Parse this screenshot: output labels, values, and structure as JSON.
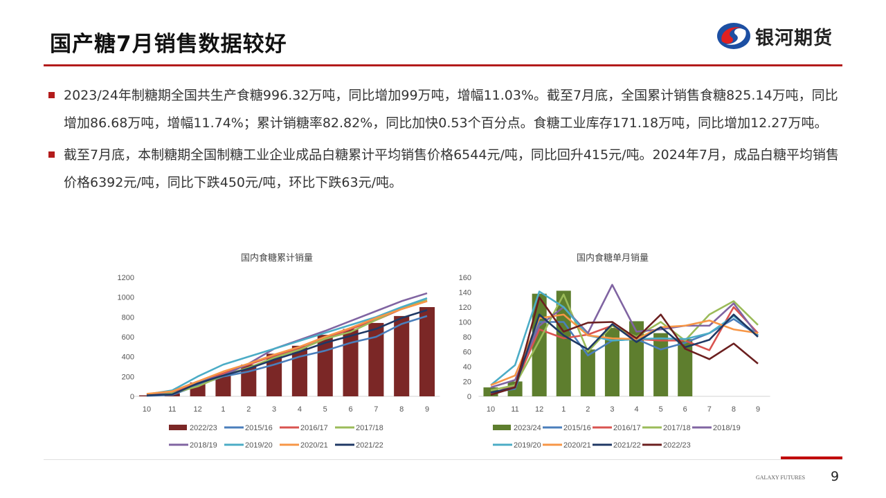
{
  "header": {
    "title": "国产糖7月销售数据较好",
    "logo_text": "银河期货"
  },
  "bullets": [
    "2023/24年制糖期全国共生产食糖996.32万吨，同比增加99万吨，增幅11.03%。截至7月底，全国累计销售食糖825.14万吨，同比增加86.68万吨，增幅11.74%；累计销糖率82.82%，同比加快0.53个百分点。食糖工业库存171.18万吨，同比增加12.27万吨。",
    "截至7月底，本制糖期全国制糖工业企业成品白糖累计平均销售价格6544元/吨，同比回升415元/吨。2024年7月，成品白糖平均销售价格6392元/吨，同比下跌450元/吨，环比下跌63元/吨。"
  ],
  "footer": {
    "brand": "GALAXY FUTURES",
    "page": "9"
  },
  "chart_data": [
    {
      "type": "bar+line",
      "title": "国内食糖累计销量",
      "categories": [
        "10",
        "11",
        "12",
        "1",
        "2",
        "3",
        "4",
        "5",
        "6",
        "7",
        "8",
        "9"
      ],
      "ylim": [
        0,
        1200
      ],
      "yticks": [
        0,
        200,
        400,
        600,
        800,
        1000,
        1200
      ],
      "bar": {
        "name": "2022/23",
        "color": "#7b2726",
        "values": [
          10,
          30,
          140,
          210,
          320,
          430,
          510,
          620,
          680,
          740,
          810,
          900
        ]
      },
      "series": [
        {
          "name": "2015/16",
          "color": "#4a7ebb",
          "values": [
            5,
            15,
            110,
            200,
            250,
            320,
            400,
            460,
            540,
            600,
            730,
            810
          ]
        },
        {
          "name": "2016/17",
          "color": "#d9534f",
          "values": [
            10,
            40,
            140,
            230,
            320,
            410,
            480,
            580,
            680,
            770,
            880,
            960
          ]
        },
        {
          "name": "2017/18",
          "color": "#9bbb59",
          "values": [
            10,
            30,
            100,
            210,
            290,
            390,
            470,
            580,
            650,
            770,
            890,
            970
          ]
        },
        {
          "name": "2018/19",
          "color": "#8064a2",
          "values": [
            15,
            50,
            150,
            210,
            330,
            480,
            570,
            660,
            760,
            860,
            960,
            1040
          ]
        },
        {
          "name": "2019/20",
          "color": "#4bacc6",
          "values": [
            20,
            60,
            200,
            320,
            400,
            480,
            560,
            640,
            720,
            800,
            900,
            990
          ]
        },
        {
          "name": "2020/21",
          "color": "#f79646",
          "values": [
            25,
            50,
            150,
            250,
            330,
            420,
            500,
            600,
            690,
            790,
            880,
            960
          ]
        },
        {
          "name": "2021/22",
          "color": "#1f3864",
          "values": [
            10,
            20,
            130,
            210,
            280,
            370,
            450,
            540,
            610,
            680,
            790,
            870
          ]
        }
      ]
    },
    {
      "type": "bar+line",
      "title": "国内食糖单月销量",
      "categories": [
        "10",
        "11",
        "12",
        "1",
        "2",
        "3",
        "4",
        "5",
        "6",
        "7",
        "8",
        "9"
      ],
      "ylim": [
        0,
        160
      ],
      "yticks": [
        0,
        20,
        40,
        60,
        80,
        100,
        120,
        140,
        160
      ],
      "bar": {
        "name": "2023/24",
        "color": "#5e7e2e",
        "values": [
          12,
          20,
          138,
          142,
          63,
          92,
          101,
          85,
          77,
          null,
          null,
          null
        ]
      },
      "series": [
        {
          "name": "2015/16",
          "color": "#4a7ebb",
          "values": [
            5,
            10,
            100,
            100,
            55,
            75,
            77,
            63,
            72,
            85,
            104,
            82
          ]
        },
        {
          "name": "2016/17",
          "color": "#d9534f",
          "values": [
            3,
            15,
            90,
            78,
            83,
            95,
            77,
            75,
            75,
            62,
            120,
            85
          ]
        },
        {
          "name": "2017/18",
          "color": "#9bbb59",
          "values": [
            8,
            15,
            75,
            137,
            60,
            95,
            80,
            100,
            75,
            110,
            128,
            96
          ]
        },
        {
          "name": "2018/19",
          "color": "#8064a2",
          "values": [
            12,
            22,
            95,
            120,
            85,
            150,
            87,
            90,
            95,
            95,
            125,
            82
          ]
        },
        {
          "name": "2019/20",
          "color": "#4bacc6",
          "values": [
            15,
            42,
            141,
            120,
            82,
            75,
            77,
            78,
            77,
            85,
            108,
            82
          ]
        },
        {
          "name": "2020/21",
          "color": "#f79646",
          "values": [
            15,
            28,
            105,
            110,
            82,
            78,
            77,
            93,
            95,
            102,
            90,
            85
          ]
        },
        {
          "name": "2021/22",
          "color": "#1f3864",
          "values": [
            5,
            12,
            110,
            82,
            63,
            97,
            73,
            93,
            66,
            76,
            110,
            80
          ]
        },
        {
          "name": "2022/23",
          "color": "#6b1f1f",
          "values": [
            2,
            12,
            133,
            87,
            99,
            100,
            78,
            110,
            64,
            50,
            71,
            44
          ]
        }
      ]
    }
  ]
}
